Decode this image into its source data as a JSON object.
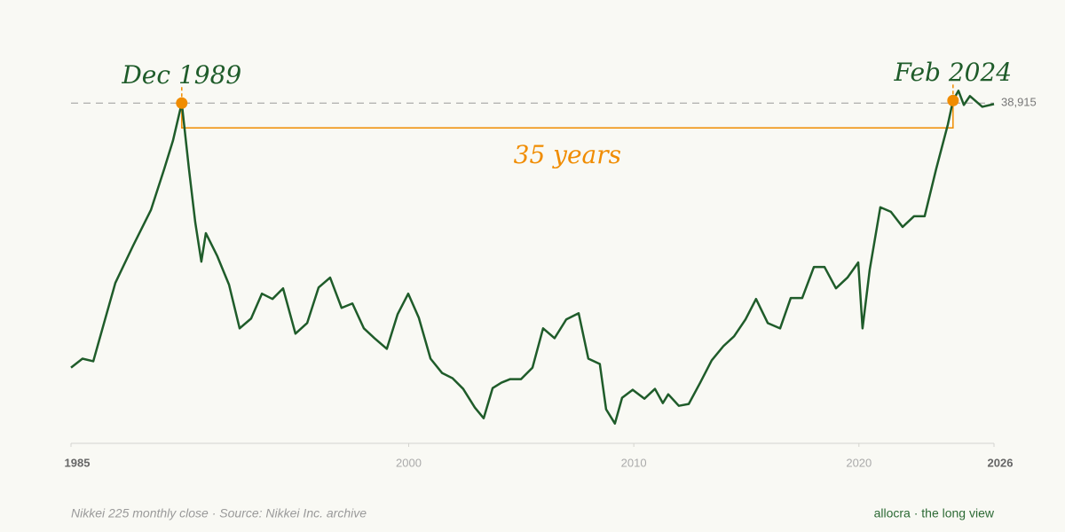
{
  "chart_data": {
    "type": "line",
    "color": "#1f5c2a",
    "accent_color": "#f08c00",
    "x": [
      1985.0,
      1985.51,
      1985.99,
      1986.5,
      1986.97,
      1987.76,
      1988.55,
      1989.14,
      1989.53,
      1989.92,
      1990.24,
      1990.52,
      1990.79,
      1990.99,
      1991.5,
      1992.02,
      1992.49,
      1993.0,
      1993.48,
      1993.95,
      1994.42,
      1994.97,
      1995.49,
      1996.0,
      1996.51,
      1997.02,
      1997.5,
      1998.01,
      1998.48,
      1999.03,
      1999.51,
      1999.98,
      2000.45,
      2000.97,
      2001.48,
      2001.95,
      2002.42,
      2002.94,
      2003.33,
      2003.73,
      2004.12,
      2004.51,
      2004.99,
      2005.5,
      2005.97,
      2006.48,
      2007.0,
      2007.55,
      2007.98,
      2008.49,
      2008.77,
      2009.16,
      2009.48,
      2009.95,
      2010.47,
      2010.94,
      2011.29,
      2011.53,
      2012.0,
      2012.44,
      2012.95,
      2013.46,
      2013.98,
      2014.45,
      2014.96,
      2015.43,
      2015.95,
      2016.5,
      2016.97,
      2017.48,
      2018.0,
      2018.47,
      2018.98,
      2019.49,
      2019.97,
      2020.16,
      2020.48,
      2020.95,
      2021.42,
      2021.94,
      2022.45,
      2022.92,
      2023.43,
      2023.95,
      2024.18,
      2024.42,
      2024.66,
      2024.93,
      2025.48,
      2026.0
    ],
    "values": [
      12550,
      13440,
      13180,
      17260,
      20990,
      24710,
      28260,
      32340,
      35180,
      38915,
      32340,
      27020,
      23110,
      25950,
      23650,
      20810,
      16460,
      17440,
      19920,
      19390,
      20450,
      15930,
      16990,
      20540,
      21520,
      18500,
      18940,
      16460,
      15480,
      14420,
      17880,
      19920,
      17520,
      13440,
      12020,
      11490,
      10430,
      8560,
      7500,
      10510,
      11050,
      11400,
      11400,
      12550,
      16460,
      15480,
      17350,
      17970,
      13440,
      12910,
      8390,
      6970,
      9540,
      10340,
      9450,
      10430,
      9010,
      9890,
      8740,
      8920,
      11050,
      13270,
      14690,
      15660,
      17350,
      19390,
      16990,
      16460,
      19480,
      19480,
      22580,
      22580,
      20450,
      21520,
      23030,
      16460,
      22320,
      28530,
      28080,
      26570,
      27640,
      27640,
      32340,
      36780,
      39170,
      40150,
      38730,
      39620,
      38550,
      38820
    ],
    "xlim": [
      1985,
      2026
    ],
    "xticks": [
      1985,
      2000,
      2010,
      2020,
      2026
    ],
    "ylim": [
      5000,
      40000
    ],
    "reference_line": {
      "value": 38915,
      "label": "38,915"
    },
    "highlights": [
      {
        "label": "Dec 1989",
        "x": 1989.92,
        "value": 38915
      },
      {
        "label": "Feb 2024",
        "x": 2024.18,
        "value": 39170
      }
    ],
    "span_label": "35 years",
    "source": "Nikkei 225 monthly close · Source: Nikkei Inc. archive",
    "brand": "allocra · the long view"
  }
}
